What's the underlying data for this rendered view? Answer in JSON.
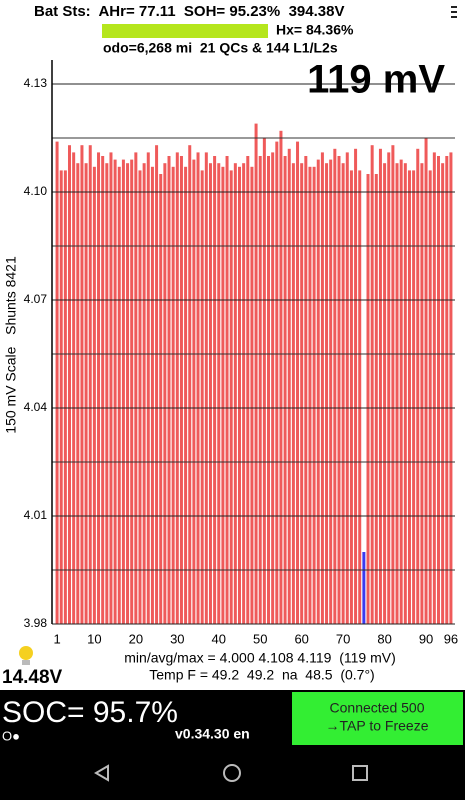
{
  "header": {
    "status": "Bat Sts:  AHr= 77.11  SOH= 95.23%  394.38V",
    "hx": "Hx= 84.36%",
    "odo": "odo=6,268 mi  21 QCs & 144 L1/L2s"
  },
  "spread_label": "119 mV",
  "stats": {
    "voltages": "min/avg/max = 4.000 4.108 4.119  (119 mV)",
    "temps": "Temp F = 49.2  49.2  na  48.5  (0.7°)"
  },
  "aux_voltage": "14.48V",
  "soc": "SOC= 95.7%",
  "indicator": "O●",
  "version": "v0.34.30 en",
  "connection": {
    "status": "Connected 500",
    "action": "→TAP to Freeze"
  },
  "chart_data": {
    "type": "bar",
    "y_label": "150 mV Scale   Shunts 8421",
    "x": [
      1,
      2,
      3,
      4,
      5,
      6,
      7,
      8,
      9,
      10,
      11,
      12,
      13,
      14,
      15,
      16,
      17,
      18,
      19,
      20,
      21,
      22,
      23,
      24,
      25,
      26,
      27,
      28,
      29,
      30,
      31,
      32,
      33,
      34,
      35,
      36,
      37,
      38,
      39,
      40,
      41,
      42,
      43,
      44,
      45,
      46,
      47,
      48,
      49,
      50,
      51,
      52,
      53,
      54,
      55,
      56,
      57,
      58,
      59,
      60,
      61,
      62,
      63,
      64,
      65,
      66,
      67,
      68,
      69,
      70,
      71,
      72,
      73,
      74,
      75,
      76,
      77,
      78,
      79,
      80,
      81,
      82,
      83,
      84,
      85,
      86,
      87,
      88,
      89,
      90,
      91,
      92,
      93,
      94,
      95,
      96
    ],
    "values": [
      4.114,
      4.106,
      4.106,
      4.113,
      4.111,
      4.108,
      4.113,
      4.108,
      4.113,
      4.107,
      4.111,
      4.11,
      4.108,
      4.111,
      4.109,
      4.107,
      4.109,
      4.108,
      4.109,
      4.111,
      4.106,
      4.108,
      4.111,
      4.107,
      4.113,
      4.105,
      4.108,
      4.11,
      4.107,
      4.111,
      4.11,
      4.107,
      4.113,
      4.109,
      4.111,
      4.106,
      4.111,
      4.108,
      4.11,
      4.108,
      4.107,
      4.11,
      4.106,
      4.108,
      4.107,
      4.108,
      4.11,
      4.107,
      4.119,
      4.11,
      4.115,
      4.11,
      4.111,
      4.114,
      4.117,
      4.11,
      4.112,
      4.108,
      4.114,
      4.108,
      4.11,
      4.107,
      4.107,
      4.109,
      4.111,
      4.108,
      4.109,
      4.112,
      4.11,
      4.108,
      4.111,
      4.106,
      4.112,
      4.106,
      4.0,
      4.105,
      4.113,
      4.105,
      4.112,
      4.108,
      4.111,
      4.113,
      4.108,
      4.109,
      4.108,
      4.106,
      4.106,
      4.112,
      4.108,
      4.115,
      4.106,
      4.111,
      4.11,
      4.108,
      4.11,
      4.111
    ],
    "color": "#ef5a5a",
    "min_color": "#3a3af0",
    "xlim": [
      0.5,
      96.5
    ],
    "xticks": [
      1,
      10,
      20,
      30,
      40,
      50,
      60,
      70,
      80,
      90,
      96
    ],
    "ylim": [
      3.98,
      4.135
    ],
    "yticks": [
      3.98,
      4.01,
      4.04,
      4.07,
      {
        "value": 4.1,
        "label": "4.10"
      },
      4.13
    ],
    "minor_yticks": [
      3.995,
      4.025,
      4.055,
      4.085,
      4.115
    ],
    "grid": true
  }
}
